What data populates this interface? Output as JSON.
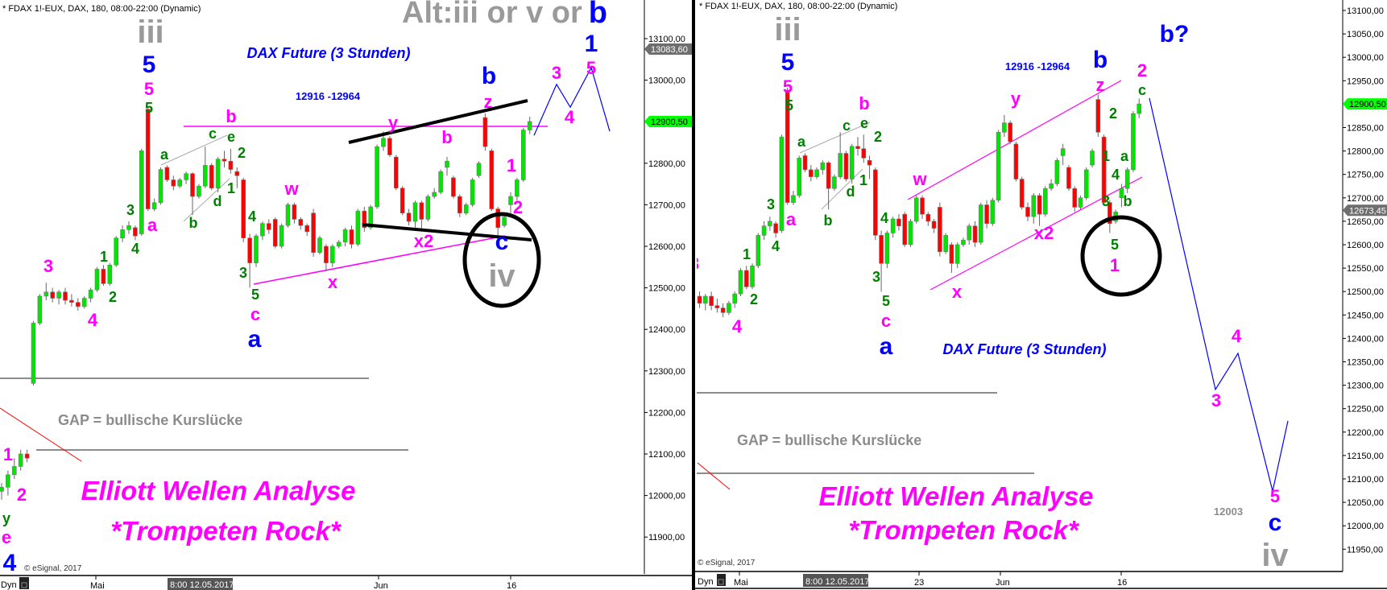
{
  "left_chart": {
    "header": "* FDAX 1!-EUX, DAX, 180, 08:00-22:00 (Dynamic)",
    "alt_title_grey": "Alt:iii or v or",
    "alt_title_blue": "b",
    "title": "DAX Future (3 Stunden)",
    "target_range": "12916 -12964",
    "gap_text": "GAP = bullische Kurslücke",
    "brand_line1": "Elliott Wellen Analyse",
    "brand_line2": "*Trompeten Rock*",
    "copyright": "© eSignal, 2017",
    "y_ticks": [
      "13100,00",
      "13000,00",
      "12800,00",
      "12700,00",
      "12600,00",
      "12500,00",
      "12400,00",
      "12300,00",
      "12200,00",
      "12100,00",
      "12000,00",
      "11900,00"
    ],
    "price_tags": [
      {
        "label": "13083,60",
        "color": "#6e6e6e"
      },
      {
        "label": "12900,50",
        "color": "#00ff00"
      }
    ],
    "x_labels": [
      "Mai",
      "Jun",
      "16"
    ],
    "cursor_date": "8:00 12.05.2017",
    "dyn_label": "Dyn",
    "wave_labels": [
      "iii",
      "5",
      "5",
      "5",
      "3",
      "4",
      "1",
      "2",
      "3",
      "4",
      "a",
      "a",
      "b",
      "c",
      "e",
      "b",
      "2",
      "1",
      "d",
      "4",
      "3",
      "5",
      "c",
      "a",
      "w",
      "x",
      "y",
      "b",
      "x2",
      "b",
      "z",
      "1",
      "2",
      "c",
      "iv",
      "3",
      "4",
      "1",
      "5",
      "1",
      "2",
      "y",
      "e",
      "4"
    ],
    "projection": [
      12867,
      12990,
      12935,
      13030,
      12877
    ]
  },
  "right_chart": {
    "header": "* FDAX 1!-EUX, DAX, 180, 08:00-22:00 (Dynamic)",
    "title": "DAX Future (3 Stunden)",
    "target_range": "12916 -12964",
    "gap_text": "GAP = bullische Kurslücke",
    "brand_line1": "Elliott Wellen Analyse",
    "brand_line2": "*Trompeten Rock*",
    "copyright": "© eSignal, 2017",
    "target_low": "12003",
    "y_ticks": [
      "13100,00",
      "13050,00",
      "13000,00",
      "12950,00",
      "12850,00",
      "12800,00",
      "12750,00",
      "12700,00",
      "12650,00",
      "12600,00",
      "12550,00",
      "12500,00",
      "12450,00",
      "12400,00",
      "12350,00",
      "12300,00",
      "12250,00",
      "12200,00",
      "12150,00",
      "12100,00",
      "12050,00",
      "12000,00",
      "11950,00"
    ],
    "price_tags": [
      {
        "label": "12900,50",
        "color": "#00ff00"
      },
      {
        "label": "12673,45",
        "color": "#6e6e6e"
      }
    ],
    "x_labels": [
      "Mai",
      "23",
      "Jun",
      "16"
    ],
    "cursor_date": "8:00 12.05.2017",
    "dyn_label": "Dyn",
    "wave_labels": [
      "iii",
      "5",
      "5",
      "5",
      "3",
      "4",
      "2",
      "1",
      "3",
      "4",
      "a",
      "a",
      "b",
      "c",
      "e",
      "b",
      "2",
      "1",
      "d",
      "4",
      "3",
      "5",
      "c",
      "a",
      "w",
      "x",
      "y",
      "x2",
      "b",
      "z",
      "2",
      "c",
      "b?",
      "2",
      "1",
      "a",
      "4",
      "3",
      "b",
      "5",
      "1",
      "4",
      "3",
      "5",
      "c",
      "iv"
    ],
    "projection": [
      12913,
      12291,
      12368,
      12074,
      12224
    ]
  },
  "colors": {
    "up": "#00e600",
    "down": "#ff0000",
    "wave_magenta": "#ff00ff",
    "wave_green": "#008000",
    "wave_blue": "#0000ff",
    "roman_grey": "#9a9a9a"
  },
  "chart_data": {
    "type": "candlestick",
    "symbol": "FDAX 1!-EUX",
    "interval": "180",
    "last": 12900.5,
    "ohlc": [
      [
        12010,
        12030,
        11990,
        12020
      ],
      [
        12020,
        12060,
        12000,
        12050
      ],
      [
        12050,
        12090,
        12040,
        12070
      ],
      [
        12070,
        12110,
        12060,
        12100
      ],
      [
        12100,
        12110,
        12080,
        12090
      ],
      [
        12270,
        12420,
        12265,
        12415
      ],
      [
        12415,
        12485,
        12410,
        12480
      ],
      [
        12480,
        12512,
        12470,
        12490
      ],
      [
        12490,
        12500,
        12465,
        12475
      ],
      [
        12475,
        12495,
        12460,
        12490
      ],
      [
        12490,
        12500,
        12460,
        12470
      ],
      [
        12470,
        12485,
        12455,
        12465
      ],
      [
        12465,
        12475,
        12445,
        12455
      ],
      [
        12455,
        12480,
        12450,
        12475
      ],
      [
        12475,
        12500,
        12465,
        12495
      ],
      [
        12495,
        12550,
        12490,
        12545
      ],
      [
        12545,
        12555,
        12505,
        12510
      ],
      [
        12510,
        12560,
        12505,
        12555
      ],
      [
        12555,
        12625,
        12550,
        12620
      ],
      [
        12620,
        12650,
        12610,
        12640
      ],
      [
        12640,
        12660,
        12630,
        12650
      ],
      [
        12645,
        12650,
        12615,
        12625
      ],
      [
        12630,
        12835,
        12625,
        12830
      ],
      [
        12930,
        12935,
        12685,
        12690
      ],
      [
        12690,
        12715,
        12685,
        12705
      ],
      [
        12705,
        12790,
        12700,
        12785
      ],
      [
        12790,
        12795,
        12755,
        12760
      ],
      [
        12760,
        12770,
        12735,
        12745
      ],
      [
        12745,
        12765,
        12740,
        12760
      ],
      [
        12760,
        12780,
        12750,
        12775
      ],
      [
        12775,
        12778,
        12675,
        12720
      ],
      [
        12720,
        12750,
        12715,
        12745
      ],
      [
        12745,
        12840,
        12740,
        12795
      ],
      [
        12795,
        12800,
        12735,
        12740
      ],
      [
        12740,
        12815,
        12730,
        12810
      ],
      [
        12810,
        12830,
        12790,
        12805
      ],
      [
        12805,
        12835,
        12775,
        12785
      ],
      [
        12780,
        12790,
        12740,
        12770
      ],
      [
        12760,
        12765,
        12610,
        12620
      ],
      [
        12620,
        12630,
        12500,
        12560
      ],
      [
        12560,
        12630,
        12550,
        12625
      ],
      [
        12625,
        12660,
        12615,
        12655
      ],
      [
        12655,
        12665,
        12630,
        12640
      ],
      [
        12665,
        12670,
        12595,
        12600
      ],
      [
        12600,
        12655,
        12595,
        12650
      ],
      [
        12650,
        12705,
        12645,
        12700
      ],
      [
        12700,
        12705,
        12655,
        12665
      ],
      [
        12665,
        12670,
        12640,
        12650
      ],
      [
        12650,
        12655,
        12625,
        12635
      ],
      [
        12680,
        12690,
        12575,
        12585
      ],
      [
        12585,
        12625,
        12580,
        12620
      ],
      [
        12600,
        12605,
        12540,
        12560
      ],
      [
        12560,
        12605,
        12550,
        12600
      ],
      [
        12600,
        12615,
        12595,
        12610
      ],
      [
        12610,
        12645,
        12600,
        12640
      ],
      [
        12640,
        12650,
        12595,
        12605
      ],
      [
        12605,
        12690,
        12600,
        12685
      ],
      [
        12685,
        12695,
        12635,
        12645
      ],
      [
        12645,
        12700,
        12640,
        12695
      ],
      [
        12695,
        12845,
        12690,
        12840
      ],
      [
        12840,
        12877,
        12830,
        12860
      ],
      [
        12860,
        12865,
        12815,
        12820
      ],
      [
        12815,
        12820,
        12735,
        12740
      ],
      [
        12740,
        12745,
        12675,
        12680
      ],
      [
        12680,
        12690,
        12650,
        12660
      ],
      [
        12660,
        12710,
        12645,
        12705
      ],
      [
        12705,
        12710,
        12640,
        12665
      ],
      [
        12665,
        12725,
        12660,
        12720
      ],
      [
        12720,
        12740,
        12715,
        12730
      ],
      [
        12730,
        12785,
        12725,
        12780
      ],
      [
        12790,
        12815,
        12770,
        12805
      ],
      [
        12765,
        12770,
        12715,
        12720
      ],
      [
        12720,
        12725,
        12670,
        12680
      ],
      [
        12680,
        12705,
        12675,
        12700
      ],
      [
        12700,
        12765,
        12695,
        12760
      ],
      [
        12770,
        12805,
        12765,
        12800
      ],
      [
        12910,
        12920,
        12830,
        12840
      ],
      [
        12830,
        12835,
        12685,
        12690
      ],
      [
        12690,
        12695,
        12625,
        12645
      ],
      [
        12650,
        12675,
        12645,
        12670
      ],
      [
        12700,
        12730,
        12680,
        12720
      ],
      [
        12720,
        12765,
        12710,
        12760
      ],
      [
        12760,
        12885,
        12755,
        12880
      ],
      [
        12880,
        12912,
        12870,
        12900.5
      ]
    ]
  }
}
